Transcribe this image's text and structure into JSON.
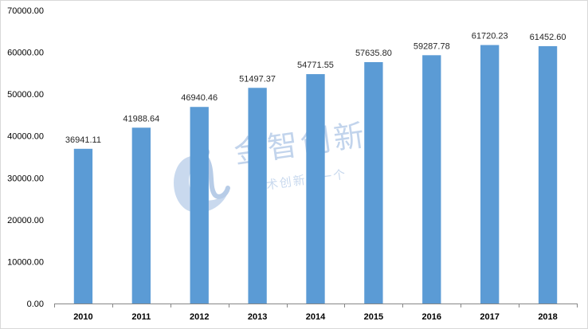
{
  "watermark": {
    "title": "金智创新",
    "slogan": "技术创新找一个"
  },
  "chart_data": {
    "type": "bar",
    "title": "",
    "xlabel": "",
    "ylabel": "",
    "categories": [
      "2010",
      "2011",
      "2012",
      "2013",
      "2014",
      "2015",
      "2016",
      "2017",
      "2018"
    ],
    "values": [
      36941.11,
      41988.64,
      46940.46,
      51497.37,
      54771.55,
      57635.8,
      59287.78,
      61720.23,
      61452.6
    ],
    "value_labels": [
      "36941.11",
      "41988.64",
      "46940.46",
      "51497.37",
      "54771.55",
      "57635.80",
      "59287.78",
      "61720.23",
      "61452.60"
    ],
    "ylim": [
      0,
      70000
    ],
    "yticks": [
      0,
      10000,
      20000,
      30000,
      40000,
      50000,
      60000,
      70000
    ],
    "ytick_labels": [
      "0.00",
      "10000.00",
      "20000.00",
      "30000.00",
      "40000.00",
      "50000.00",
      "60000.00",
      "70000.00"
    ],
    "grid": false,
    "legend": "none",
    "bar_color": "#5b9bd5",
    "axis_color": "#868686"
  }
}
